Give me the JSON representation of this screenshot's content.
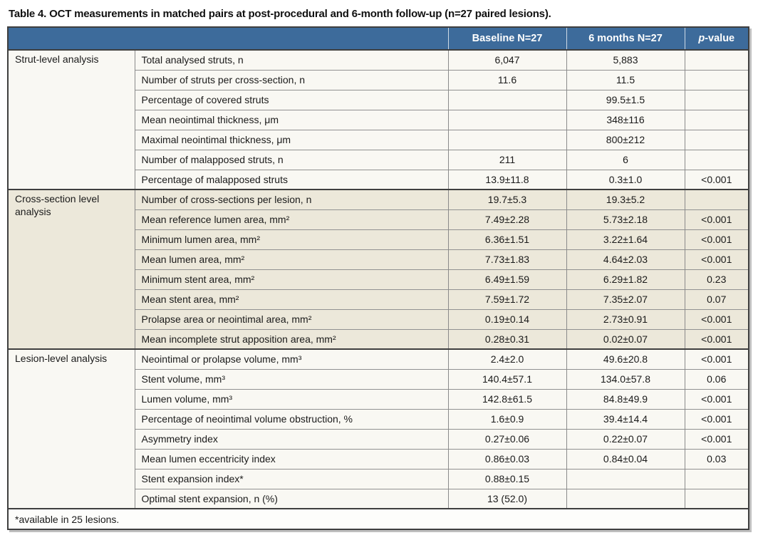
{
  "title": "Table 4. OCT measurements in matched pairs at post-procedural and 6-month follow-up (n=27 paired lesions).",
  "header": {
    "baseline": "Baseline N=27",
    "six_months": "6 months N=27",
    "p_italic": "p",
    "p_rest": "-value"
  },
  "colors": {
    "header_bg": "#3d6b9b",
    "header_text": "#ffffff",
    "section_light_bg": "#f9f8f3",
    "section_tan_bg": "#ece8da",
    "border_dark": "#3f3f3f",
    "border_thin": "#8a8a8a",
    "footer_bg": "#fdfdfb"
  },
  "sections": [
    {
      "label": "Strut-level analysis",
      "shade": "light",
      "rows": [
        {
          "measure": "Total analysed struts, n",
          "baseline": "6,047",
          "six_months": "5,883",
          "p": ""
        },
        {
          "measure": "Number of struts per cross-section, n",
          "baseline": "11.6",
          "six_months": "11.5",
          "p": ""
        },
        {
          "measure": "Percentage of covered struts",
          "baseline": "",
          "six_months": "99.5±1.5",
          "p": ""
        },
        {
          "measure": "Mean neointimal thickness, μm",
          "baseline": "",
          "six_months": "348±116",
          "p": ""
        },
        {
          "measure": "Maximal neointimal thickness, μm",
          "baseline": "",
          "six_months": "800±212",
          "p": ""
        },
        {
          "measure": "Number of malapposed struts, n",
          "baseline": "211",
          "six_months": "6",
          "p": ""
        },
        {
          "measure": "Percentage of malapposed struts",
          "baseline": "13.9±11.8",
          "six_months": "0.3±1.0",
          "p": "<0.001"
        }
      ]
    },
    {
      "label": "Cross-section level analysis",
      "shade": "tan",
      "rows": [
        {
          "measure": "Number of cross-sections per lesion, n",
          "baseline": "19.7±5.3",
          "six_months": "19.3±5.2",
          "p": ""
        },
        {
          "measure": "Mean reference lumen area, mm²",
          "baseline": "7.49±2.28",
          "six_months": "5.73±2.18",
          "p": "<0.001"
        },
        {
          "measure": "Minimum lumen area, mm²",
          "baseline": "6.36±1.51",
          "six_months": "3.22±1.64",
          "p": "<0.001"
        },
        {
          "measure": "Mean lumen area, mm²",
          "baseline": "7.73±1.83",
          "six_months": "4.64±2.03",
          "p": "<0.001"
        },
        {
          "measure": "Minimum stent area, mm²",
          "baseline": "6.49±1.59",
          "six_months": "6.29±1.82",
          "p": "0.23"
        },
        {
          "measure": "Mean stent area, mm²",
          "baseline": "7.59±1.72",
          "six_months": "7.35±2.07",
          "p": "0.07"
        },
        {
          "measure": "Prolapse area or neointimal area, mm²",
          "baseline": "0.19±0.14",
          "six_months": "2.73±0.91",
          "p": "<0.001"
        },
        {
          "measure": "Mean incomplete strut apposition area, mm²",
          "baseline": "0.28±0.31",
          "six_months": "0.02±0.07",
          "p": "<0.001"
        }
      ]
    },
    {
      "label": "Lesion-level analysis",
      "shade": "light",
      "rows": [
        {
          "measure": "Neointimal or prolapse volume, mm³",
          "baseline": "2.4±2.0",
          "six_months": "49.6±20.8",
          "p": "<0.001"
        },
        {
          "measure": "Stent volume, mm³",
          "baseline": "140.4±57.1",
          "six_months": "134.0±57.8",
          "p": "0.06"
        },
        {
          "measure": "Lumen volume, mm³",
          "baseline": "142.8±61.5",
          "six_months": "84.8±49.9",
          "p": "<0.001"
        },
        {
          "measure": "Percentage of neointimal volume obstruction, %",
          "baseline": "1.6±0.9",
          "six_months": "39.4±14.4",
          "p": "<0.001"
        },
        {
          "measure": "Asymmetry index",
          "baseline": "0.27±0.06",
          "six_months": "0.22±0.07",
          "p": "<0.001"
        },
        {
          "measure": "Mean lumen eccentricity index",
          "baseline": "0.86±0.03",
          "six_months": "0.84±0.04",
          "p": "0.03"
        },
        {
          "measure": "Stent expansion index*",
          "baseline": "0.88±0.15",
          "six_months": "",
          "p": ""
        },
        {
          "measure": "Optimal stent expansion, n (%)",
          "baseline": "13 (52.0)",
          "six_months": "",
          "p": ""
        }
      ]
    }
  ],
  "footnote": "*available in 25 lesions."
}
